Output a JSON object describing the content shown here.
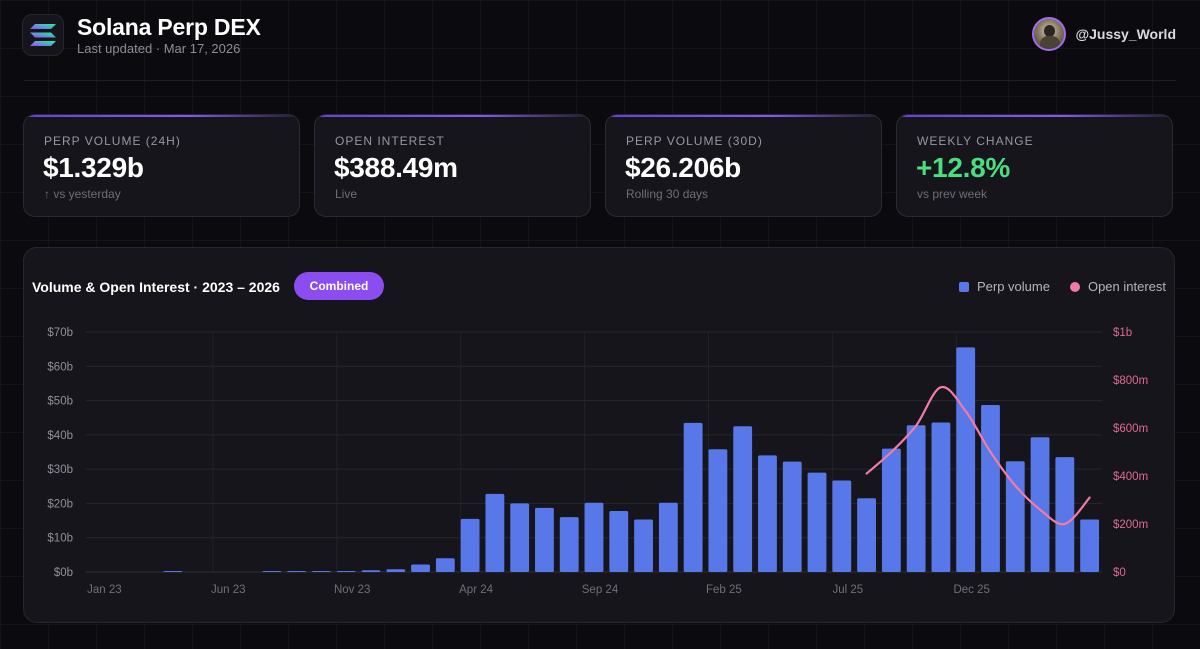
{
  "header": {
    "title": "Solana Perp DEX",
    "subtitle": "Last updated · Mar 17, 2026",
    "username": "@Jussy_World"
  },
  "cards": [
    {
      "label": "PERP VOLUME (24H)",
      "value": "$1.329b",
      "note": "↑ vs yesterday"
    },
    {
      "label": "OPEN INTEREST",
      "value": "$388.49m",
      "note": "Live"
    },
    {
      "label": "PERP VOLUME (30D)",
      "value": "$26.206b",
      "note": "Rolling 30 days"
    },
    {
      "label": "WEEKLY CHANGE",
      "value": "+12.8%",
      "note": "vs prev week"
    }
  ],
  "panel": {
    "title": "Volume & Open Interest · 2023 – 2026",
    "toggle_label": "Combined",
    "legend": [
      "Perp volume",
      "Open interest"
    ]
  },
  "colors": {
    "accent": "#8b4cf0",
    "bar": "#5877e8",
    "line": "#f07ca6",
    "positive": "#4ade80"
  },
  "chart_data": {
    "type": "bar+line",
    "title": "Volume & Open Interest · 2023 – 2026",
    "x_tick_labels": [
      "Jan 23",
      "Jun 23",
      "Nov 23",
      "Apr 24",
      "Sep 24",
      "Feb 25",
      "Jul 25",
      "Dec 25"
    ],
    "left_axis": {
      "label": "Perp volume",
      "ticks": [
        "$0b",
        "$10b",
        "$20b",
        "$30b",
        "$40b",
        "$50b",
        "$60b",
        "$70b"
      ],
      "range": [
        0,
        70
      ]
    },
    "right_axis": {
      "label": "Open interest",
      "ticks": [
        "$0",
        "$200m",
        "$400m",
        "$600m",
        "$800m",
        "$1b"
      ],
      "range": [
        0,
        1000
      ]
    },
    "series": [
      {
        "name": "Perp volume",
        "unit": "$b",
        "values": [
          0,
          0,
          0,
          0.2,
          0,
          0,
          0,
          0.2,
          0.2,
          0.2,
          0.3,
          0.5,
          0.8,
          2.2,
          4.0,
          15.5,
          22.8,
          20.0,
          18.7,
          16.0,
          20.2,
          17.8,
          15.3,
          20.2,
          43.5,
          35.8,
          42.5,
          34.0,
          32.2,
          29.0,
          26.7,
          21.5,
          36.0,
          42.8,
          43.6,
          65.5,
          48.7,
          32.3,
          39.3,
          33.5,
          15.3
        ]
      },
      {
        "name": "Open interest",
        "unit": "$m",
        "start_index": 31,
        "values": [
          410,
          500,
          610,
          770,
          670,
          500,
          360,
          260,
          200,
          310
        ]
      }
    ]
  }
}
